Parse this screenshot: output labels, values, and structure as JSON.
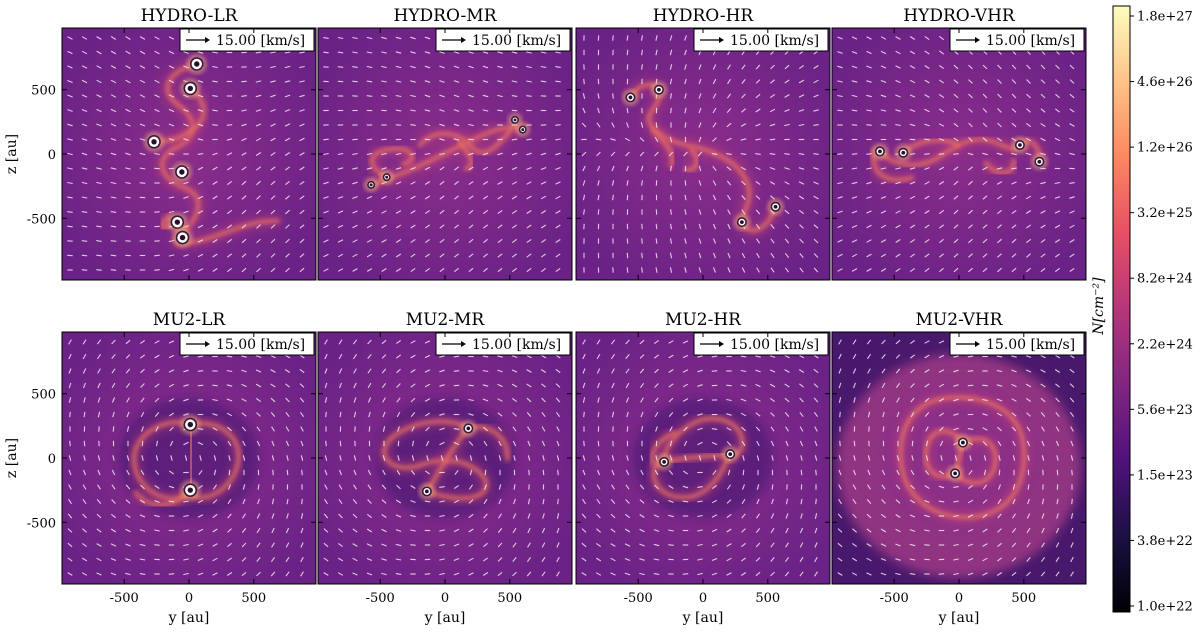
{
  "figure": {
    "panels": [
      {
        "title": "HYDRO-LR",
        "key_label": "15.00  [km/s]",
        "sinks": [
          [
            60,
            700,
            "L"
          ],
          [
            10,
            510,
            "L"
          ],
          [
            -270,
            95,
            "L"
          ],
          [
            -55,
            -140,
            "L"
          ],
          [
            -90,
            -530,
            "L"
          ],
          [
            -50,
            -650,
            "L"
          ]
        ]
      },
      {
        "title": "HYDRO-MR",
        "key_label": "15.00  [km/s]",
        "sinks": [
          [
            -450,
            -180,
            "s"
          ],
          [
            -570,
            -240,
            "s"
          ],
          [
            540,
            265,
            "s"
          ],
          [
            600,
            190,
            "s"
          ]
        ]
      },
      {
        "title": "HYDRO-HR",
        "key_label": "15.00  [km/s]",
        "sinks": [
          [
            -560,
            440,
            "m"
          ],
          [
            -340,
            500,
            "m"
          ],
          [
            300,
            -530,
            "m"
          ],
          [
            560,
            -410,
            "m"
          ]
        ]
      },
      {
        "title": "HYDRO-VHR",
        "key_label": "15.00  [km/s]",
        "sinks": [
          [
            -610,
            20,
            "m"
          ],
          [
            -430,
            10,
            "m"
          ],
          [
            470,
            70,
            "m"
          ],
          [
            620,
            -60,
            "m"
          ]
        ]
      },
      {
        "title": "MU2-LR",
        "key_label": "15.00  [km/s]",
        "sinks": [
          [
            10,
            260,
            "L"
          ],
          [
            10,
            -250,
            "L"
          ]
        ]
      },
      {
        "title": "MU2-MR",
        "key_label": "15.00  [km/s]",
        "sinks": [
          [
            180,
            230,
            "m"
          ],
          [
            -140,
            -260,
            "m"
          ]
        ]
      },
      {
        "title": "MU2-HR",
        "key_label": "15.00  [km/s]",
        "sinks": [
          [
            -300,
            -30,
            "m"
          ],
          [
            210,
            30,
            "m"
          ]
        ]
      },
      {
        "title": "MU2-VHR",
        "key_label": "15.00  [km/s]",
        "sinks": [
          [
            30,
            120,
            "m"
          ],
          [
            -30,
            -120,
            "m"
          ]
        ]
      }
    ],
    "x_axis_label": "y [au]",
    "y_axis_label": "z [au]",
    "x_ticks": [
      "-500",
      "0",
      "500"
    ],
    "y_ticks": [
      "500",
      "0",
      "-500"
    ],
    "colorbar": {
      "label": "N[cm⁻²]",
      "tick_labels": [
        "1.8e+27",
        "4.6e+26",
        "1.2e+26",
        "3.2e+25",
        "8.2e+24",
        "2.2e+24",
        "5.6e+23",
        "1.5e+23",
        "3.8e+22",
        "1.0e+22"
      ]
    },
    "colors": {
      "background": "#7a2a8c",
      "vector": "#ffffff",
      "colormap": [
        "#000004",
        "#1c1044",
        "#4f127b",
        "#812581",
        "#b5367a",
        "#e55064",
        "#fb8761",
        "#fec287",
        "#fcfdbf"
      ]
    }
  }
}
